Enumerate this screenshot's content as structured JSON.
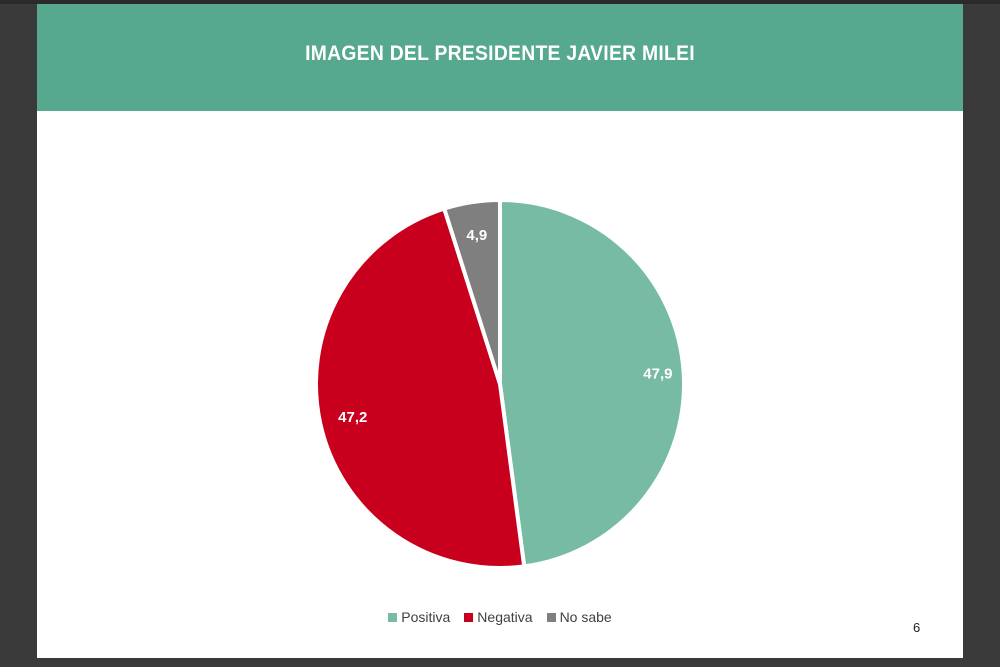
{
  "slide": {
    "title": "IMAGEN DEL PRESIDENTE JAVIER MILEI",
    "page_number": "6"
  },
  "colors": {
    "header": "#56a88e",
    "positiva": "#77bba4",
    "negativa": "#c8001e",
    "no_sabe": "#7f7f7f"
  },
  "chart_data": {
    "type": "pie",
    "title": "IMAGEN DEL PRESIDENTE JAVIER MILEI",
    "legend_position": "bottom",
    "categories": [
      "Positiva",
      "Negativa",
      "No sabe"
    ],
    "values": [
      47.9,
      47.2,
      4.9
    ],
    "labels": [
      "47,9",
      "47,2",
      "4,9"
    ],
    "colors": [
      "#77bba4",
      "#c8001e",
      "#7f7f7f"
    ]
  }
}
